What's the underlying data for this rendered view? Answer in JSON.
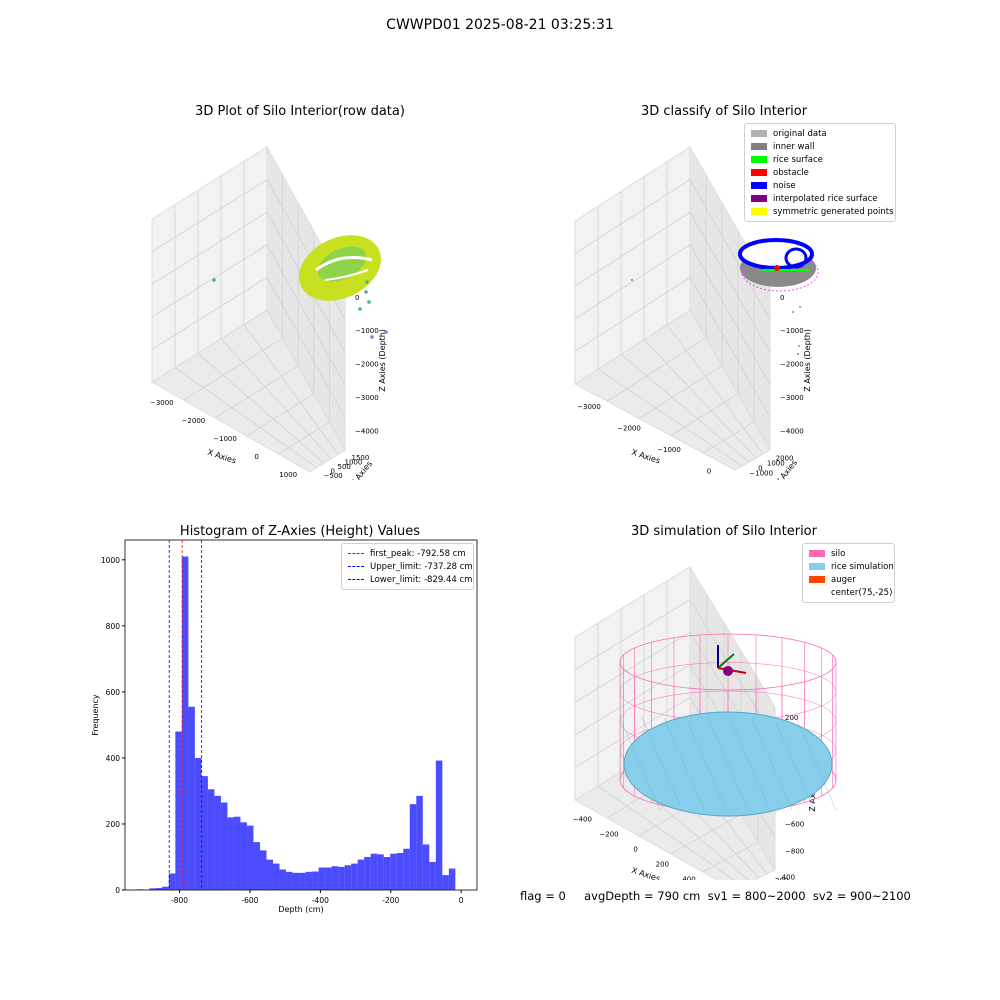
{
  "figure": {
    "suptitle": "CWWPD01 2025-08-21 03:25:31"
  },
  "panel1": {
    "title": "3D Plot of Silo Interior(row data)",
    "xlabel": "X Axies",
    "ylabel": "Y Axies",
    "zlabel": "Z Axies (Depth)",
    "xticks": [
      "−3000",
      "−2000",
      "−1000",
      "0",
      "1000"
    ],
    "yticks": [
      "−500",
      "0",
      "500",
      "1000",
      "1500"
    ],
    "zticks": [
      "0",
      "−1000",
      "−2000",
      "−3000",
      "−4000"
    ],
    "colors": {
      "surface": "#c8e020",
      "inner": "#8fd34a",
      "points": "#44b58b",
      "outlier": "#8f7bbf"
    }
  },
  "panel2": {
    "title": "3D classify of Silo Interior",
    "xlabel": "X Axies",
    "ylabel": "Y Axies",
    "zlabel": "Z Axies (Depth)",
    "xticks": [
      "−3000",
      "−2000",
      "−1000",
      "0"
    ],
    "yticks": [
      "−1000",
      "0",
      "1000",
      "2000"
    ],
    "zticks": [
      "0",
      "−1000",
      "−2000",
      "−3000",
      "−4000"
    ],
    "legend": [
      {
        "label": "original data",
        "color": "#b3b3b3"
      },
      {
        "label": "inner wall",
        "color": "#808080"
      },
      {
        "label": "rice surface",
        "color": "#00ff00"
      },
      {
        "label": "obstacle",
        "color": "#ff0000"
      },
      {
        "label": "noise",
        "color": "#0000ff"
      },
      {
        "label": "interpolated rice surface",
        "color": "#800080"
      },
      {
        "label": "symmetric generated points",
        "color": "#ffff00"
      }
    ]
  },
  "panel3": {
    "title": "Histogram of Z-Axies (Height) Values",
    "xlabel": "Depth (cm)",
    "ylabel": "Frequency",
    "legend": [
      {
        "label": "first_peak: -792.58 cm",
        "color": "#ff0000"
      },
      {
        "label": "Upper_limit: -737.28 cm",
        "color": "#0000ff"
      },
      {
        "label": "Lower_limit: -829.44 cm",
        "color": "#0000ff"
      }
    ]
  },
  "panel4": {
    "title": "3D simulation of Silo Interior",
    "xlabel": "X Axies",
    "ylabel": "Y Axies",
    "zlabel": "Z Axies (Depth)",
    "xticks": [
      "−400",
      "−200",
      "0",
      "200",
      "400",
      "600"
    ],
    "yticks": [
      "−600",
      "−400",
      "−200",
      "0",
      "200",
      "400"
    ],
    "zticks": [
      "200",
      "0",
      "−200",
      "−400",
      "−600",
      "−800"
    ],
    "legend": [
      {
        "label": "silo",
        "color": "#ff69b4"
      },
      {
        "label": "rice simulation",
        "color": "#87ceeb"
      },
      {
        "label": "auger",
        "color": "#ff4500"
      },
      {
        "label": "center(75,-25)",
        "color": "none"
      }
    ]
  },
  "footer": {
    "text": "flag = 0     avgDepth = 790 cm  sv1 = 800~2000  sv2 = 900~2100"
  },
  "chart_data": {
    "type": "bar",
    "title": "Histogram of Z-Axies (Height) Values",
    "xlabel": "Depth (cm)",
    "ylabel": "Frequency",
    "xlim": [
      -955,
      45
    ],
    "ylim": [
      0,
      1060
    ],
    "xticks": [
      -800,
      -600,
      -400,
      -200,
      0
    ],
    "yticks": [
      0,
      200,
      400,
      600,
      800,
      1000
    ],
    "bin_start": -923,
    "bin_width": 18.5,
    "values": [
      2,
      0,
      5,
      6,
      10,
      50,
      480,
      1010,
      555,
      400,
      345,
      305,
      285,
      265,
      220,
      222,
      205,
      195,
      145,
      120,
      92,
      80,
      62,
      55,
      52,
      52,
      55,
      56,
      68,
      68,
      72,
      70,
      75,
      80,
      92,
      100,
      110,
      108,
      100,
      110,
      112,
      125,
      260,
      285,
      138,
      85,
      392,
      45,
      65
    ],
    "vlines": [
      {
        "label": "first_peak: -792.58 cm",
        "x": -792.58,
        "color": "#ff0000",
        "style": "dashed"
      },
      {
        "label": "Upper_limit: -737.28 cm",
        "x": -737.28,
        "color": "#0000ff",
        "style": "dashed"
      },
      {
        "label": "Lower_limit: -829.44 cm",
        "x": -829.44,
        "color": "#0000ff",
        "style": "dashed"
      }
    ],
    "bar_color": "#0000ff",
    "bar_opacity": 0.7,
    "legend_position": "upper right"
  }
}
